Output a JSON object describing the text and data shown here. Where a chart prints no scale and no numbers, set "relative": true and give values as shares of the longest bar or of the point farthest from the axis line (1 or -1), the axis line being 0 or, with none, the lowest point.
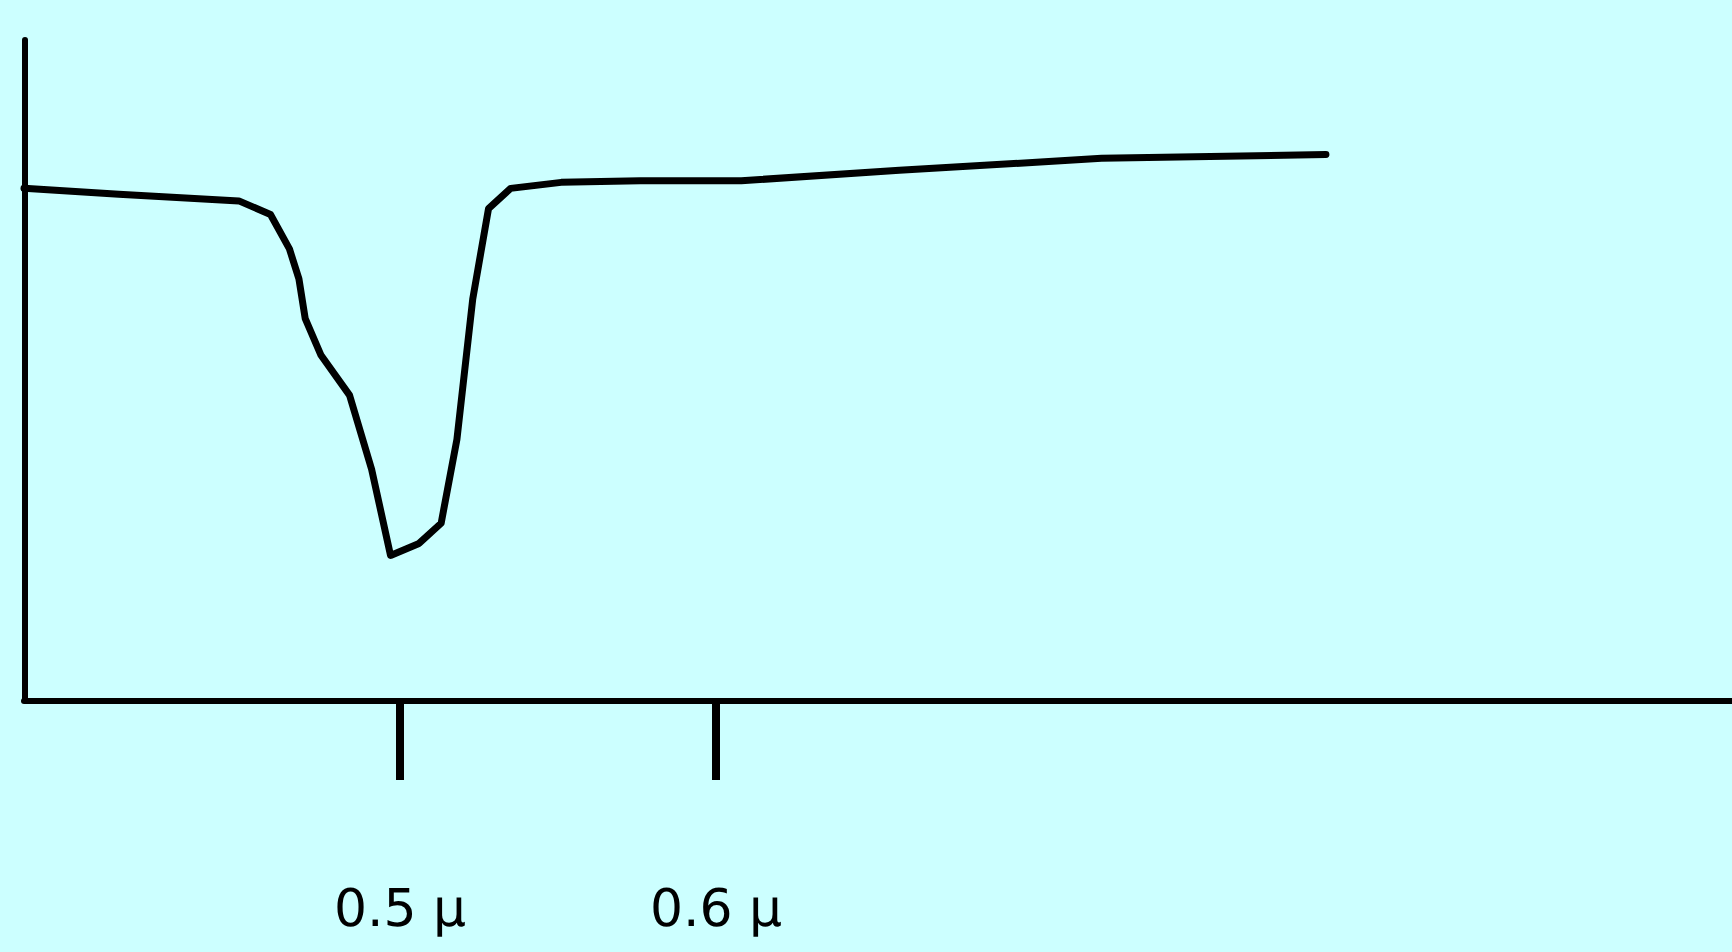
{
  "chart_data": {
    "type": "line",
    "relative": true,
    "xlim": [
      0.381,
      0.9215
    ],
    "xticks": [
      {
        "value": 0.5,
        "label": "0.5 μ"
      },
      {
        "value": 0.6,
        "label": "0.6 μ"
      }
    ],
    "marker": "none",
    "grid": false,
    "series": [
      {
        "color": "#000000",
        "x": [
          0.381,
          0.411,
          0.449,
          0.459,
          0.465,
          0.468,
          0.47,
          0.475,
          0.484,
          0.491,
          0.497,
          0.506,
          0.513,
          0.518,
          0.523,
          0.528,
          0.535,
          0.551,
          0.576,
          0.608,
          0.658,
          0.722,
          0.793
        ],
        "values": [
          0.938,
          0.927,
          0.915,
          0.89,
          0.827,
          0.772,
          0.699,
          0.632,
          0.559,
          0.423,
          0.265,
          0.287,
          0.324,
          0.478,
          0.735,
          0.901,
          0.938,
          0.949,
          0.952,
          0.952,
          0.971,
          0.993,
          1.0
        ]
      }
    ]
  }
}
